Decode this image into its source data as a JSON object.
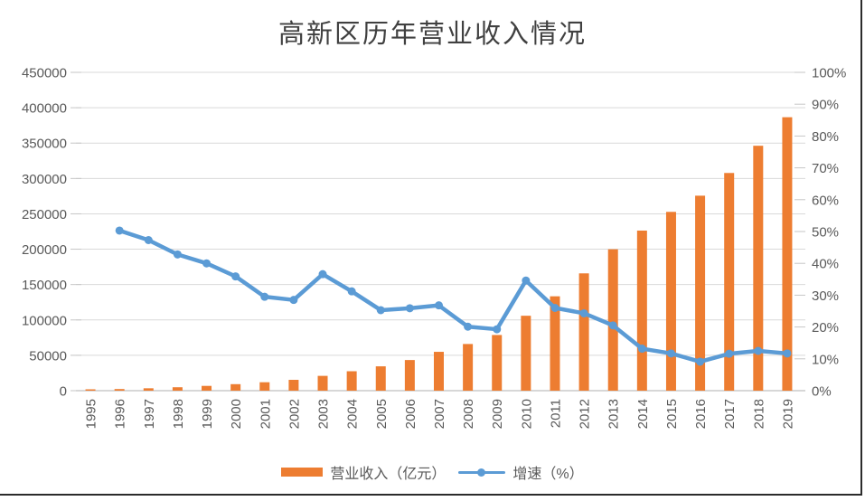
{
  "title": "高新区历年营业收入情况",
  "legend": {
    "items": [
      {
        "label": "营业收入（亿元）",
        "swatch": "bar",
        "color": "#ED7D31"
      },
      {
        "label": "增速（%）",
        "swatch": "line-marker",
        "color": "#5B9BD5"
      }
    ],
    "position": "bottom"
  },
  "colors": {
    "bar": "#ED7D31",
    "line": "#5B9BD5",
    "gridline": "#D9D9D9",
    "axis_line": "#BFBFBF",
    "tick": "#C6C6C6",
    "axis_text": "#595959",
    "title_text": "#404040"
  },
  "chart_data": {
    "type": "bar",
    "subtype": "combo-bar-line-dual-axis",
    "title": "高新区历年营业收入情况",
    "xlabel": "",
    "ylabel_left": "营业收入（亿元）",
    "ylabel_right": "增速（%）",
    "grid": true,
    "legend_position": "bottom",
    "categories": [
      "1995",
      "1996",
      "1997",
      "1998",
      "1999",
      "2000",
      "2001",
      "2002",
      "2003",
      "2004",
      "2005",
      "2006",
      "2007",
      "2008",
      "2009",
      "2010",
      "2011",
      "2012",
      "2013",
      "2014",
      "2015",
      "2016",
      "2017",
      "2018",
      "2019"
    ],
    "series": [
      {
        "name": "营业收入（亿元）",
        "type": "bar",
        "axis": "left",
        "color": "#ED7D31",
        "values": [
          1530,
          2300,
          3388,
          4839,
          6775,
          9209,
          11928,
          15326,
          20939,
          27466,
          34416,
          43320,
          54925,
          65986,
          78707,
          105917,
          133418,
          165842,
          199902,
          226295,
          252758,
          275637,
          307744,
          346223,
          386561
        ]
      },
      {
        "name": "增速（%）",
        "type": "line",
        "axis": "right",
        "color": "#5B9BD5",
        "values": [
          null,
          50.3,
          47.3,
          42.8,
          40.0,
          35.9,
          29.5,
          28.5,
          36.6,
          31.2,
          25.3,
          25.9,
          26.8,
          20.1,
          19.3,
          34.6,
          26.0,
          24.3,
          20.5,
          13.2,
          11.7,
          9.1,
          11.6,
          12.5,
          11.7
        ]
      }
    ],
    "left_axis": {
      "min": 0,
      "max": 450000,
      "step": 50000,
      "labels": [
        "0",
        "50000",
        "100000",
        "150000",
        "200000",
        "250000",
        "300000",
        "350000",
        "400000",
        "450000"
      ]
    },
    "right_axis": {
      "min": 0,
      "max": 100,
      "step": 10,
      "labels": [
        "0%",
        "10%",
        "20%",
        "30%",
        "40%",
        "50%",
        "60%",
        "70%",
        "80%",
        "90%",
        "100%"
      ]
    }
  }
}
